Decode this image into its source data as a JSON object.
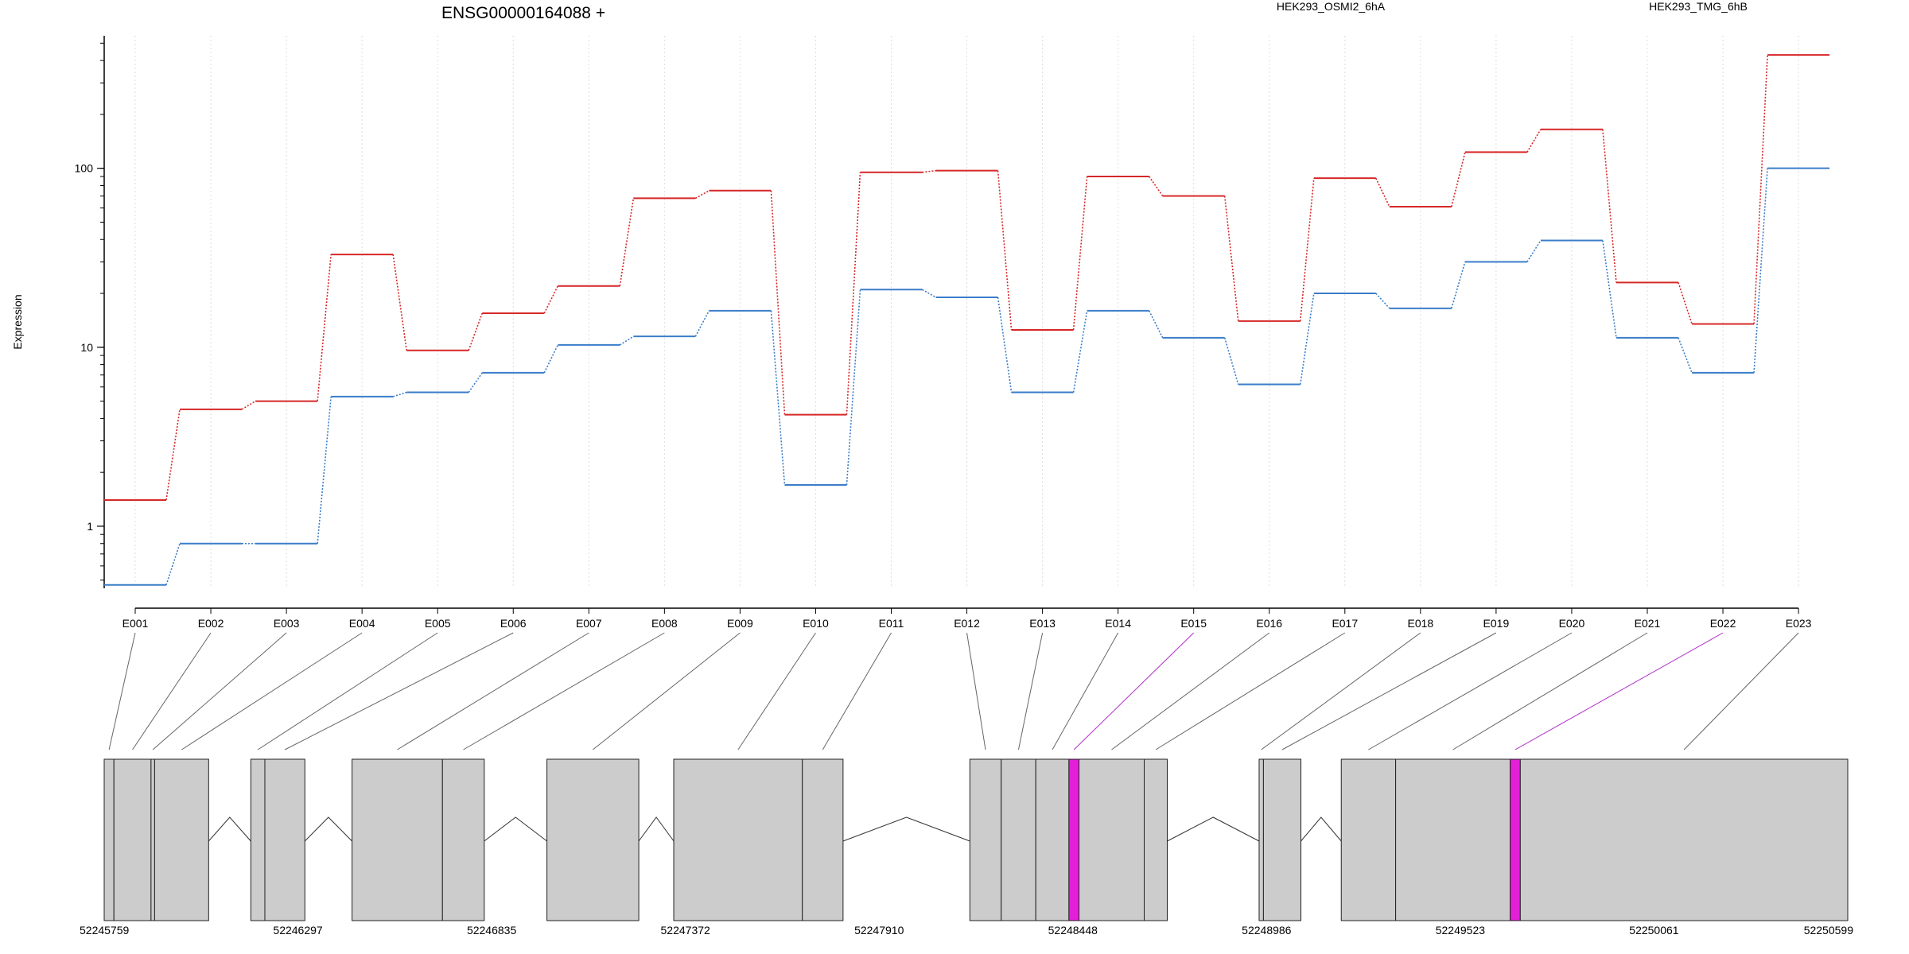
{
  "chart_data": {
    "type": "line",
    "title": "ENSG00000164088 +",
    "xlabel": "",
    "ylabel": "Expression",
    "y_scale": "log",
    "ylim": [
      0.45,
      550
    ],
    "y_ticks": [
      1,
      10,
      100
    ],
    "y_tick_labels": [
      "1",
      "10",
      "100"
    ],
    "grid": "vertical dotted",
    "legend_position": "top",
    "categories": [
      "E001",
      "E002",
      "E003",
      "E004",
      "E005",
      "E006",
      "E007",
      "E008",
      "E009",
      "E010",
      "E011",
      "E012",
      "E013",
      "E014",
      "E015",
      "E016",
      "E017",
      "E018",
      "E019",
      "E020",
      "E021",
      "E022",
      "E023"
    ],
    "series": [
      {
        "name": "HEK293_OSMI2_6hA",
        "color": "#d62728",
        "values": [
          1.4,
          4.5,
          5.0,
          33,
          9.6,
          15.5,
          22,
          68,
          75,
          4.2,
          95,
          97,
          12.5,
          90,
          70,
          14,
          88,
          61,
          123,
          165,
          23,
          13.5,
          430
        ]
      },
      {
        "name": "HEK293_TMG_6hB",
        "color": "#3a7dc9",
        "values": [
          0.47,
          0.8,
          0.8,
          5.3,
          5.6,
          7.2,
          10.3,
          11.5,
          16,
          1.7,
          21,
          19,
          5.6,
          16,
          11.3,
          6.2,
          20,
          16.5,
          30,
          39.5,
          11.3,
          7.2,
          100
        ]
      }
    ],
    "gene_model": {
      "genomic_coordinates": [
        "52245759",
        "52246297",
        "52246835",
        "52247372",
        "52247910",
        "52248448",
        "52248986",
        "52249523",
        "52250061",
        "52250599"
      ],
      "exon_blocks": [
        [
          52245759,
          52245786
        ],
        [
          52245786,
          52245889
        ],
        [
          52245889,
          52245899
        ],
        [
          52245899,
          52246049
        ],
        [
          52246166,
          52246205
        ],
        [
          52246205,
          52246316
        ],
        [
          52246447,
          52246698
        ],
        [
          52246698,
          52246814
        ],
        [
          52246988,
          52247243
        ],
        [
          52247340,
          52247697
        ],
        [
          52247697,
          52247810
        ],
        [
          52248162,
          52248249
        ],
        [
          52248249,
          52248345
        ],
        [
          52248345,
          52248437
        ],
        [
          52248437,
          52248465
        ],
        [
          52248465,
          52248646
        ],
        [
          52248646,
          52248710
        ],
        [
          52248965,
          52248977
        ],
        [
          52248977,
          52249081
        ],
        [
          52249193,
          52249344
        ],
        [
          52249344,
          52249662
        ],
        [
          52249662,
          52249690
        ],
        [
          52249690,
          52250599
        ]
      ],
      "highlighted_exons": [
        "E015",
        "E022"
      ],
      "exon_color": "#cccccc",
      "highlight_color": "#e31fd8"
    }
  }
}
